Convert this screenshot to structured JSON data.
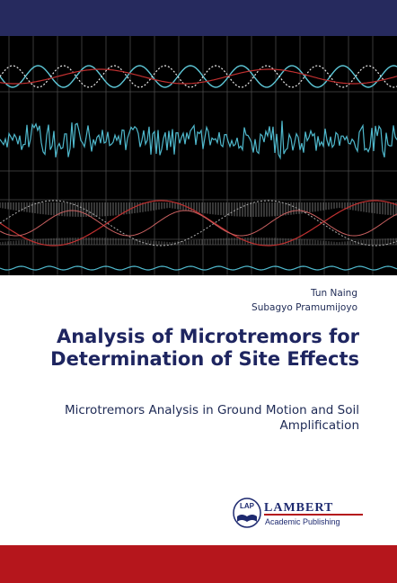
{
  "authors": [
    "Tun Naing",
    "Subagyo Pramumijoyo"
  ],
  "title": "Analysis of Microtremors for Determination of Site Effects",
  "subtitle": "Microtremors Analysis in Ground Motion and Soil Amplification",
  "publisher": {
    "mark": "LAP",
    "name": "LAMBERT",
    "tagline": "Academic Publishing"
  }
}
